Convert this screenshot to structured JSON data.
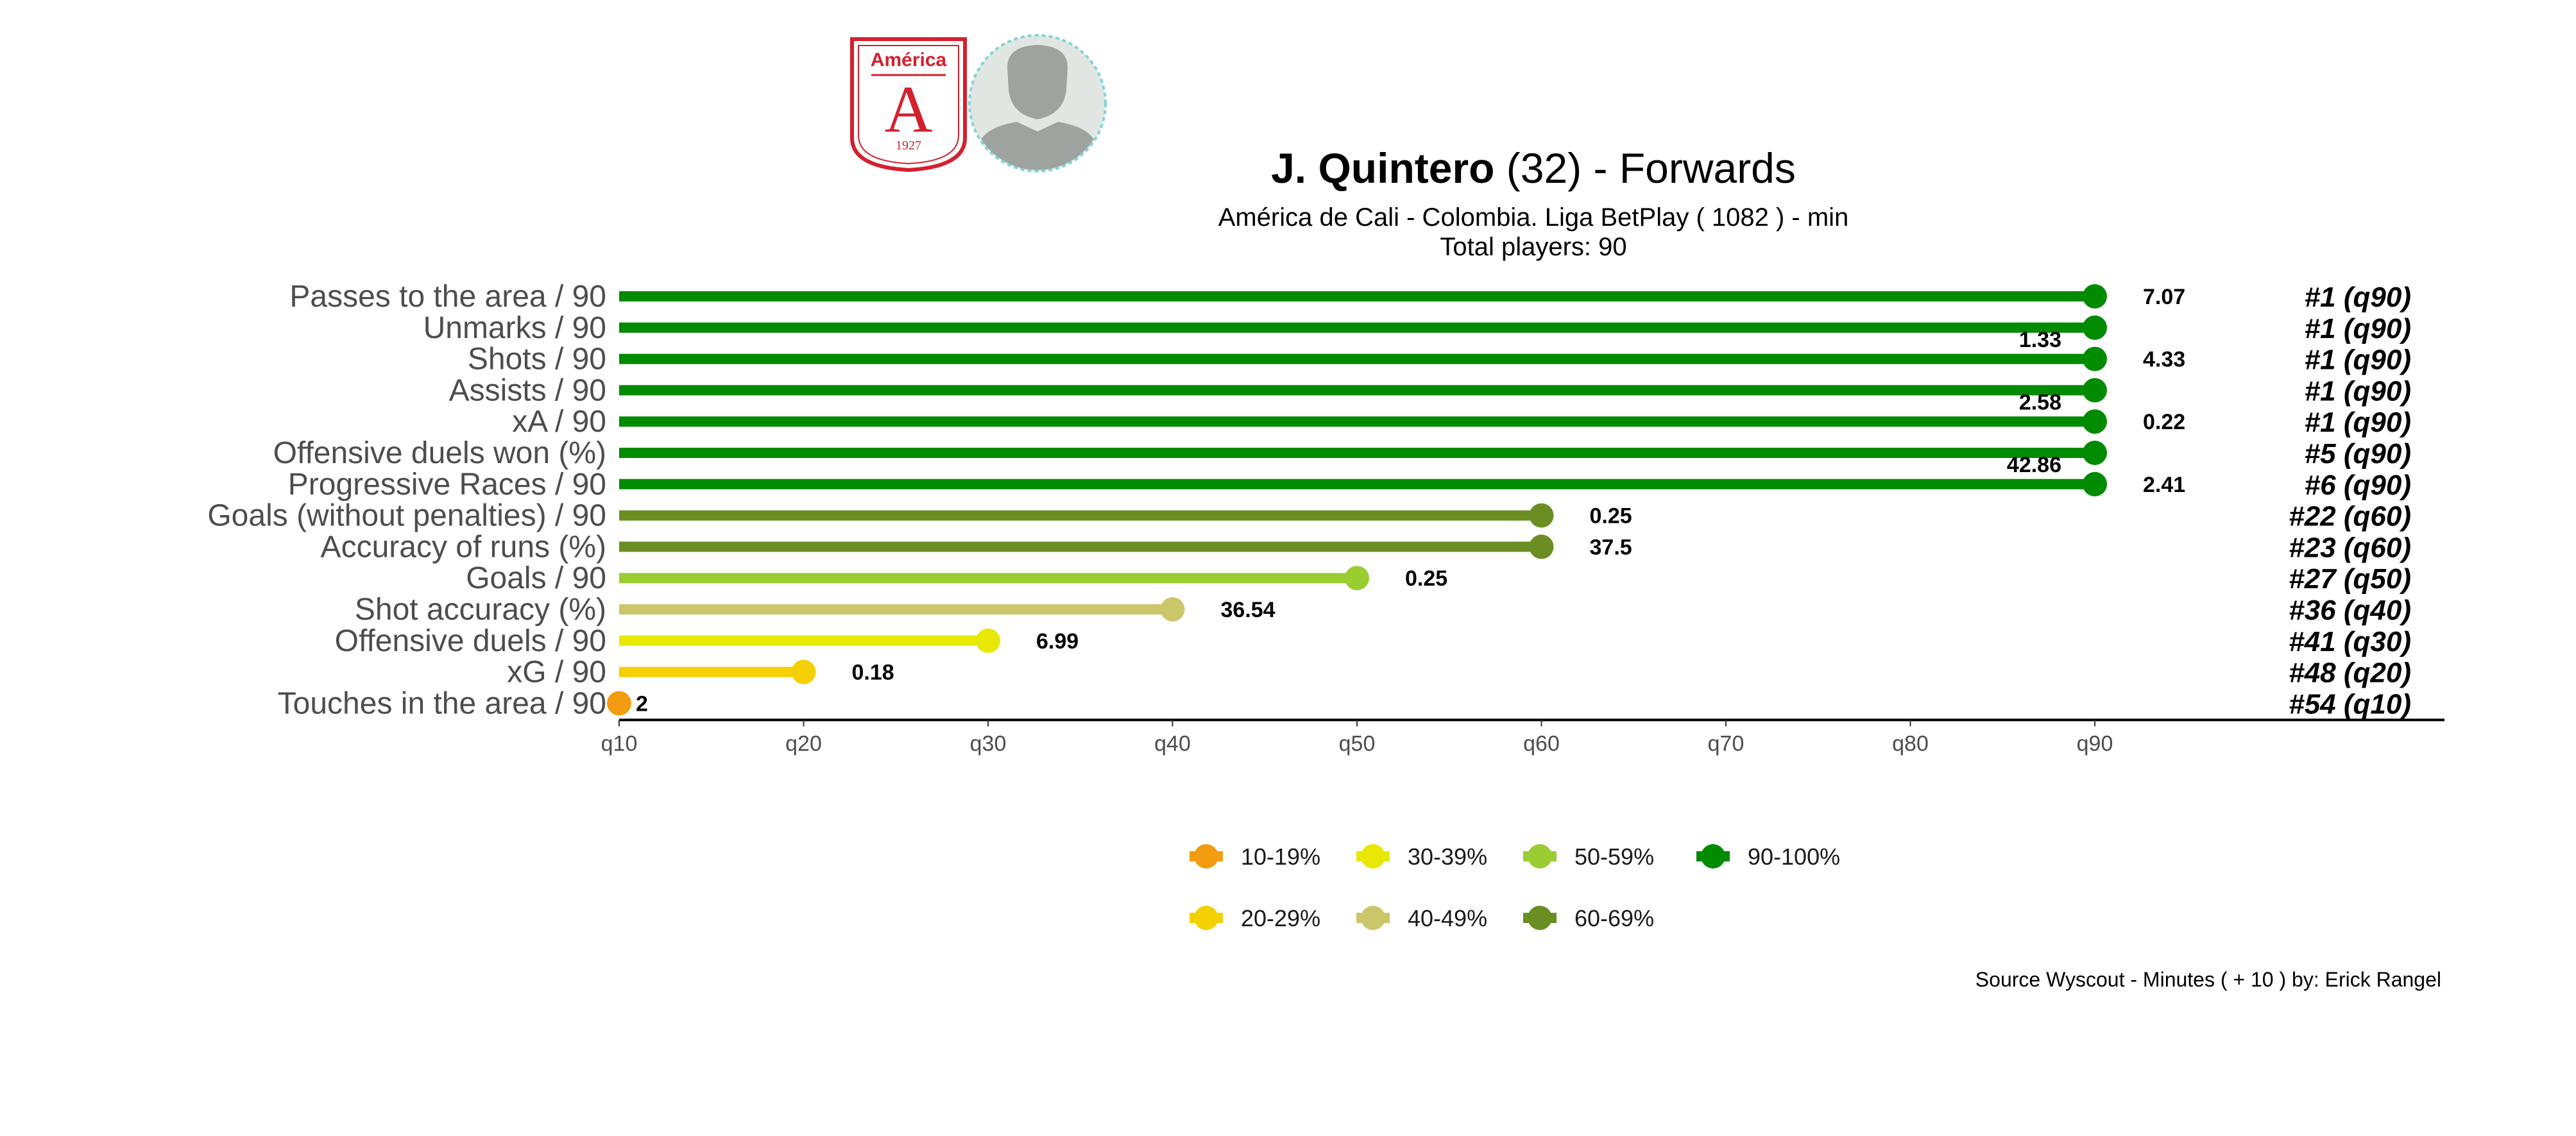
{
  "header": {
    "player_name": "J. Quintero",
    "title_rest": " (32) -  Forwards",
    "subtitle": "América de Cali  -  Colombia. Liga BetPlay  ( 1082 ) - min",
    "total_players": "Total players:  90"
  },
  "logo": {
    "team_name": "América",
    "letter": "A",
    "year": "1927"
  },
  "footer": {
    "source": "Source Wyscout - Minutes ( + 10 ) by: Erick Rangel"
  },
  "colors": {
    "10-19%": "#f39c12",
    "20-29%": "#f5d000",
    "30-39%": "#e8e800",
    "40-49%": "#ccc66a",
    "50-59%": "#9acd32",
    "60-69%": "#6b8e23",
    "90-100%": "#008b00"
  },
  "chart_data": {
    "type": "lollipop",
    "x_ticks": [
      "q10",
      "q20",
      "q30",
      "q40",
      "q50",
      "q60",
      "q70",
      "q80",
      "q90"
    ],
    "xlim": [
      10,
      90
    ],
    "items": [
      {
        "label": "Passes to the area / 90",
        "percentile": 90,
        "value": "7.07",
        "rank": "#1 (q90)",
        "group": "90-100%",
        "value_pos": "right"
      },
      {
        "label": "Unmarks / 90",
        "percentile": 90,
        "value": "1.33",
        "rank": "#1 (q90)",
        "group": "90-100%",
        "value_pos": "below-left"
      },
      {
        "label": "Shots / 90",
        "percentile": 90,
        "value": "4.33",
        "rank": "#1 (q90)",
        "group": "90-100%",
        "value_pos": "right"
      },
      {
        "label": "Assists / 90",
        "percentile": 90,
        "value": "2.58",
        "rank": "#1 (q90)",
        "group": "90-100%",
        "value_pos": "below-left"
      },
      {
        "label": "xA / 90",
        "percentile": 90,
        "value": "0.22",
        "rank": "#1 (q90)",
        "group": "90-100%",
        "value_pos": "right"
      },
      {
        "label": "Offensive duels won (%)",
        "percentile": 90,
        "value": "42.86",
        "rank": "#5 (q90)",
        "group": "90-100%",
        "value_pos": "below-left"
      },
      {
        "label": "Progressive Races / 90",
        "percentile": 90,
        "value": "2.41",
        "rank": "#6 (q90)",
        "group": "90-100%",
        "value_pos": "right"
      },
      {
        "label": "Goals (without penalties) / 90",
        "percentile": 60,
        "value": "0.25",
        "rank": "#22 (q60)",
        "group": "60-69%",
        "value_pos": "right"
      },
      {
        "label": "Accuracy of runs (%)",
        "percentile": 60,
        "value": "37.5",
        "rank": "#23 (q60)",
        "group": "60-69%",
        "value_pos": "right"
      },
      {
        "label": "Goals / 90",
        "percentile": 50,
        "value": "0.25",
        "rank": "#27 (q50)",
        "group": "50-59%",
        "value_pos": "right"
      },
      {
        "label": "Shot accuracy (%)",
        "percentile": 40,
        "value": "36.54",
        "rank": "#36 (q40)",
        "group": "40-49%",
        "value_pos": "right"
      },
      {
        "label": "Offensive duels / 90",
        "percentile": 30,
        "value": "6.99",
        "rank": "#41 (q30)",
        "group": "30-39%",
        "value_pos": "right"
      },
      {
        "label": "xG / 90",
        "percentile": 20,
        "value": "0.18",
        "rank": "#48 (q20)",
        "group": "20-29%",
        "value_pos": "right"
      },
      {
        "label": "Touches in the area / 90",
        "percentile": 10,
        "value": "2",
        "rank": "#54 (q10)",
        "group": "10-19%",
        "value_pos": "right"
      }
    ],
    "legend": {
      "placement": "bottom",
      "rows": [
        [
          "10-19%",
          "30-39%",
          "50-59%",
          "90-100%"
        ],
        [
          "20-29%",
          "40-49%",
          "60-69%"
        ]
      ]
    }
  }
}
